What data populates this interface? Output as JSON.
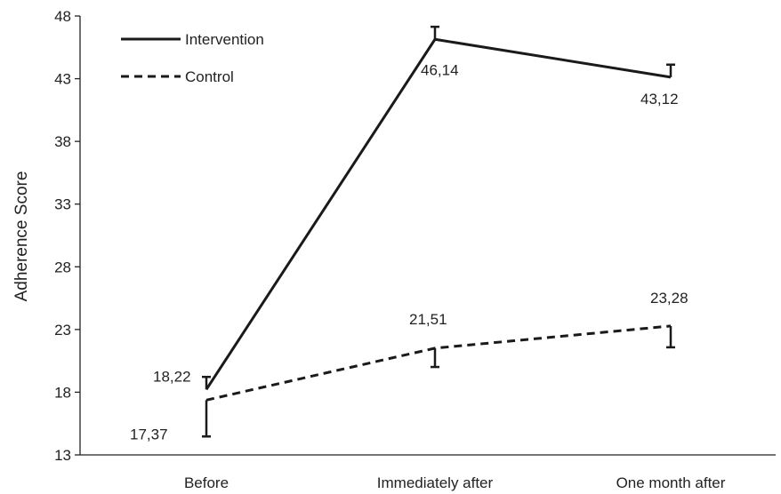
{
  "chart_data": {
    "type": "line",
    "title": "",
    "xlabel": "",
    "ylabel": "Adherence Score",
    "ylim": [
      13,
      48
    ],
    "yticks": [
      "13",
      "18",
      "23",
      "28",
      "33",
      "38",
      "43",
      "48"
    ],
    "categories": [
      "Before",
      "Immediately after",
      "One month after"
    ],
    "grid": false,
    "legend": "top-left",
    "series": [
      {
        "name": "Intervention",
        "style": "solid",
        "color": "#1a1a1a",
        "values": [
          18.22,
          46.14,
          43.12
        ],
        "labels": [
          "18,22",
          "46,14",
          "43,12"
        ],
        "error": [
          1.0,
          1.0,
          1.0
        ]
      },
      {
        "name": "Control",
        "style": "dashed",
        "color": "#1a1a1a",
        "values": [
          17.37,
          21.51,
          23.28
        ],
        "labels": [
          "17,37",
          "21,51",
          "23,28"
        ],
        "error": [
          2.9,
          1.5,
          1.7
        ]
      }
    ]
  }
}
